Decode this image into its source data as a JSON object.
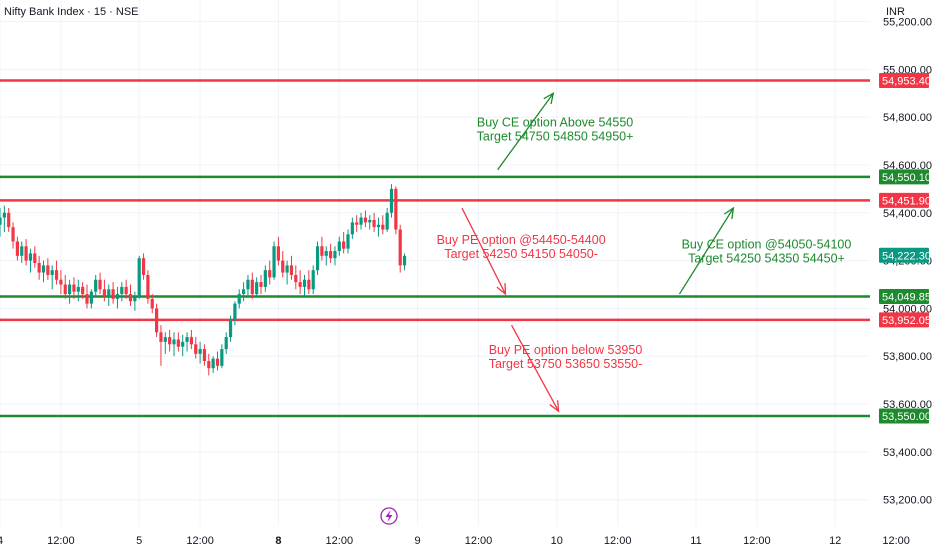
{
  "header": {
    "title": "Nifty Bank Index · 15 · NSE",
    "currency": "INR"
  },
  "colors": {
    "up": "#089981",
    "down": "#f23645",
    "resistance": "#f23645",
    "support": "#1e8a2e",
    "grid": "#f0f3fa",
    "text": "#131722"
  },
  "icons": {
    "event_marker": "lightning-bolt-icon"
  },
  "chart_data": {
    "type": "candlestick",
    "y_range": [
      53090,
      55290
    ],
    "y_ticks": [
      {
        "value": 55200,
        "label": "55,200.00"
      },
      {
        "value": 55000,
        "label": "55,000.00"
      },
      {
        "value": 54800,
        "label": "54,800.00"
      },
      {
        "value": 54600,
        "label": "54,600.00"
      },
      {
        "value": 54400,
        "label": "54,400.00"
      },
      {
        "value": 54200,
        "label": "54,200.00"
      },
      {
        "value": 54000,
        "label": "54,000.00"
      },
      {
        "value": 53800,
        "label": "53,800.00"
      },
      {
        "value": 53600,
        "label": "53,600.00"
      },
      {
        "value": 53400,
        "label": "53,400.00"
      },
      {
        "value": 53200,
        "label": "53,200.00"
      }
    ],
    "x_range": [
      0,
      100
    ],
    "x_ticks": [
      {
        "x": 0,
        "label": "4",
        "bold": false
      },
      {
        "x": 7,
        "label": "12:00",
        "bold": false
      },
      {
        "x": 16,
        "label": "5",
        "bold": false
      },
      {
        "x": 23,
        "label": "12:00",
        "bold": false
      },
      {
        "x": 32,
        "label": "8",
        "bold": true
      },
      {
        "x": 39,
        "label": "12:00",
        "bold": false
      },
      {
        "x": 48,
        "label": "9",
        "bold": false
      },
      {
        "x": 55,
        "label": "12:00",
        "bold": false
      },
      {
        "x": 64,
        "label": "10",
        "bold": false
      },
      {
        "x": 71,
        "label": "12:00",
        "bold": false
      },
      {
        "x": 80,
        "label": "11",
        "bold": false
      },
      {
        "x": 87,
        "label": "12:00",
        "bold": false
      },
      {
        "x": 96,
        "label": "12",
        "bold": false
      },
      {
        "x": 103,
        "label": "12:00",
        "bold": false
      }
    ],
    "levels": [
      {
        "value": 54953.4,
        "label": "54,953.40",
        "role": "resistance"
      },
      {
        "value": 54550.1,
        "label": "54,550.10",
        "role": "support"
      },
      {
        "value": 54451.9,
        "label": "54,451.90",
        "role": "resistance"
      },
      {
        "value": 54049.85,
        "label": "54,049.85",
        "role": "support"
      },
      {
        "value": 53952.05,
        "label": "53,952.05",
        "role": "resistance"
      },
      {
        "value": 53550.0,
        "label": "53,550.00",
        "role": "support"
      }
    ],
    "last_price": {
      "value": 54222.3,
      "label": "54,222.30"
    },
    "candles": [
      {
        "x": 0.0,
        "o": 54350,
        "h": 54420,
        "l": 54300,
        "c": 54380
      },
      {
        "x": 0.5,
        "o": 54380,
        "h": 54430,
        "l": 54320,
        "c": 54400
      },
      {
        "x": 1.0,
        "o": 54400,
        "h": 54420,
        "l": 54320,
        "c": 54340
      },
      {
        "x": 1.5,
        "o": 54340,
        "h": 54360,
        "l": 54250,
        "c": 54280
      },
      {
        "x": 2.0,
        "o": 54280,
        "h": 54300,
        "l": 54200,
        "c": 54220
      },
      {
        "x": 2.5,
        "o": 54220,
        "h": 54280,
        "l": 54190,
        "c": 54260
      },
      {
        "x": 3.0,
        "o": 54260,
        "h": 54290,
        "l": 54180,
        "c": 54200
      },
      {
        "x": 3.5,
        "o": 54200,
        "h": 54250,
        "l": 54150,
        "c": 54230
      },
      {
        "x": 4.0,
        "o": 54230,
        "h": 54260,
        "l": 54170,
        "c": 54190
      },
      {
        "x": 4.5,
        "o": 54190,
        "h": 54220,
        "l": 54120,
        "c": 54150
      },
      {
        "x": 5.0,
        "o": 54150,
        "h": 54200,
        "l": 54110,
        "c": 54180
      },
      {
        "x": 5.5,
        "o": 54180,
        "h": 54210,
        "l": 54120,
        "c": 54140
      },
      {
        "x": 6.0,
        "o": 54140,
        "h": 54180,
        "l": 54080,
        "c": 54160
      },
      {
        "x": 6.5,
        "o": 54160,
        "h": 54200,
        "l": 54100,
        "c": 54120
      },
      {
        "x": 7.0,
        "o": 54120,
        "h": 54160,
        "l": 54060,
        "c": 54100
      },
      {
        "x": 7.5,
        "o": 54100,
        "h": 54140,
        "l": 54040,
        "c": 54060
      },
      {
        "x": 8.0,
        "o": 54060,
        "h": 54120,
        "l": 54020,
        "c": 54100
      },
      {
        "x": 8.5,
        "o": 54100,
        "h": 54130,
        "l": 54040,
        "c": 54070
      },
      {
        "x": 9.0,
        "o": 54070,
        "h": 54120,
        "l": 54030,
        "c": 54090
      },
      {
        "x": 9.5,
        "o": 54090,
        "h": 54110,
        "l": 54040,
        "c": 54060
      },
      {
        "x": 10.0,
        "o": 54060,
        "h": 54100,
        "l": 54000,
        "c": 54020
      },
      {
        "x": 10.5,
        "o": 54020,
        "h": 54080,
        "l": 54000,
        "c": 54070
      },
      {
        "x": 11.0,
        "o": 54070,
        "h": 54140,
        "l": 54050,
        "c": 54120
      },
      {
        "x": 11.5,
        "o": 54120,
        "h": 54150,
        "l": 54060,
        "c": 54080
      },
      {
        "x": 12.0,
        "o": 54080,
        "h": 54120,
        "l": 54030,
        "c": 54050
      },
      {
        "x": 12.5,
        "o": 54050,
        "h": 54100,
        "l": 54010,
        "c": 54080
      },
      {
        "x": 13.0,
        "o": 54080,
        "h": 54110,
        "l": 54020,
        "c": 54040
      },
      {
        "x": 13.5,
        "o": 54040,
        "h": 54090,
        "l": 54000,
        "c": 54060
      },
      {
        "x": 14.0,
        "o": 54060,
        "h": 54110,
        "l": 54030,
        "c": 54090
      },
      {
        "x": 14.5,
        "o": 54090,
        "h": 54120,
        "l": 54040,
        "c": 54060
      },
      {
        "x": 15.0,
        "o": 54060,
        "h": 54100,
        "l": 54010,
        "c": 54030
      },
      {
        "x": 15.5,
        "o": 54030,
        "h": 54070,
        "l": 53990,
        "c": 54050
      },
      {
        "x": 16.0,
        "o": 54050,
        "h": 54220,
        "l": 54040,
        "c": 54210
      },
      {
        "x": 16.5,
        "o": 54210,
        "h": 54230,
        "l": 54120,
        "c": 54140
      },
      {
        "x": 17.0,
        "o": 54140,
        "h": 54160,
        "l": 54020,
        "c": 54040
      },
      {
        "x": 17.5,
        "o": 54040,
        "h": 54060,
        "l": 53980,
        "c": 54000
      },
      {
        "x": 18.0,
        "o": 54000,
        "h": 54020,
        "l": 53880,
        "c": 53900
      },
      {
        "x": 18.5,
        "o": 53900,
        "h": 53930,
        "l": 53760,
        "c": 53860
      },
      {
        "x": 19.0,
        "o": 53860,
        "h": 53900,
        "l": 53810,
        "c": 53880
      },
      {
        "x": 19.5,
        "o": 53880,
        "h": 53910,
        "l": 53820,
        "c": 53850
      },
      {
        "x": 20.0,
        "o": 53850,
        "h": 53900,
        "l": 53800,
        "c": 53870
      },
      {
        "x": 20.5,
        "o": 53870,
        "h": 53900,
        "l": 53820,
        "c": 53840
      },
      {
        "x": 21.0,
        "o": 53840,
        "h": 53890,
        "l": 53800,
        "c": 53860
      },
      {
        "x": 21.5,
        "o": 53860,
        "h": 53900,
        "l": 53820,
        "c": 53880
      },
      {
        "x": 22.0,
        "o": 53880,
        "h": 53910,
        "l": 53830,
        "c": 53850
      },
      {
        "x": 22.5,
        "o": 53850,
        "h": 53880,
        "l": 53790,
        "c": 53810
      },
      {
        "x": 23.0,
        "o": 53810,
        "h": 53860,
        "l": 53770,
        "c": 53830
      },
      {
        "x": 23.5,
        "o": 53830,
        "h": 53850,
        "l": 53760,
        "c": 53780
      },
      {
        "x": 24.0,
        "o": 53780,
        "h": 53810,
        "l": 53720,
        "c": 53750
      },
      {
        "x": 24.5,
        "o": 53750,
        "h": 53800,
        "l": 53730,
        "c": 53790
      },
      {
        "x": 25.0,
        "o": 53790,
        "h": 53820,
        "l": 53740,
        "c": 53760
      },
      {
        "x": 25.5,
        "o": 53760,
        "h": 53850,
        "l": 53750,
        "c": 53830
      },
      {
        "x": 26.0,
        "o": 53830,
        "h": 53900,
        "l": 53810,
        "c": 53880
      },
      {
        "x": 26.5,
        "o": 53880,
        "h": 53970,
        "l": 53860,
        "c": 53950
      },
      {
        "x": 27.0,
        "o": 53950,
        "h": 54030,
        "l": 53930,
        "c": 54020
      },
      {
        "x": 27.5,
        "o": 54020,
        "h": 54080,
        "l": 54000,
        "c": 54060
      },
      {
        "x": 28.0,
        "o": 54060,
        "h": 54110,
        "l": 54030,
        "c": 54080
      },
      {
        "x": 28.5,
        "o": 54080,
        "h": 54140,
        "l": 54050,
        "c": 54120
      },
      {
        "x": 29.0,
        "o": 54120,
        "h": 54150,
        "l": 54040,
        "c": 54060
      },
      {
        "x": 29.5,
        "o": 54060,
        "h": 54130,
        "l": 54050,
        "c": 54110
      },
      {
        "x": 30.0,
        "o": 54110,
        "h": 54140,
        "l": 54060,
        "c": 54090
      },
      {
        "x": 30.5,
        "o": 54090,
        "h": 54180,
        "l": 54070,
        "c": 54160
      },
      {
        "x": 31.0,
        "o": 54160,
        "h": 54200,
        "l": 54100,
        "c": 54130
      },
      {
        "x": 31.5,
        "o": 54130,
        "h": 54280,
        "l": 54120,
        "c": 54260
      },
      {
        "x": 32.0,
        "o": 54260,
        "h": 54300,
        "l": 54180,
        "c": 54200
      },
      {
        "x": 32.5,
        "o": 54200,
        "h": 54240,
        "l": 54130,
        "c": 54150
      },
      {
        "x": 33.0,
        "o": 54150,
        "h": 54200,
        "l": 54100,
        "c": 54180
      },
      {
        "x": 33.5,
        "o": 54180,
        "h": 54220,
        "l": 54120,
        "c": 54140
      },
      {
        "x": 34.0,
        "o": 54140,
        "h": 54180,
        "l": 54080,
        "c": 54110
      },
      {
        "x": 34.5,
        "o": 54110,
        "h": 54160,
        "l": 54060,
        "c": 54090
      },
      {
        "x": 35.0,
        "o": 54090,
        "h": 54140,
        "l": 54050,
        "c": 54120
      },
      {
        "x": 35.5,
        "o": 54120,
        "h": 54160,
        "l": 54060,
        "c": 54080
      },
      {
        "x": 36.0,
        "o": 54080,
        "h": 54180,
        "l": 54060,
        "c": 54160
      },
      {
        "x": 36.5,
        "o": 54160,
        "h": 54280,
        "l": 54140,
        "c": 54260
      },
      {
        "x": 37.0,
        "o": 54260,
        "h": 54300,
        "l": 54200,
        "c": 54220
      },
      {
        "x": 37.5,
        "o": 54220,
        "h": 54260,
        "l": 54180,
        "c": 54240
      },
      {
        "x": 38.0,
        "o": 54240,
        "h": 54270,
        "l": 54190,
        "c": 54210
      },
      {
        "x": 38.5,
        "o": 54210,
        "h": 54260,
        "l": 54180,
        "c": 54240
      },
      {
        "x": 39.0,
        "o": 54240,
        "h": 54300,
        "l": 54220,
        "c": 54280
      },
      {
        "x": 39.5,
        "o": 54280,
        "h": 54320,
        "l": 54230,
        "c": 54250
      },
      {
        "x": 40.0,
        "o": 54250,
        "h": 54330,
        "l": 54230,
        "c": 54310
      },
      {
        "x": 40.5,
        "o": 54310,
        "h": 54380,
        "l": 54290,
        "c": 54360
      },
      {
        "x": 41.0,
        "o": 54360,
        "h": 54390,
        "l": 54320,
        "c": 54350
      },
      {
        "x": 41.5,
        "o": 54350,
        "h": 54400,
        "l": 54330,
        "c": 54380
      },
      {
        "x": 42.0,
        "o": 54380,
        "h": 54410,
        "l": 54340,
        "c": 54360
      },
      {
        "x": 42.5,
        "o": 54360,
        "h": 54390,
        "l": 54330,
        "c": 54370
      },
      {
        "x": 43.0,
        "o": 54370,
        "h": 54400,
        "l": 54320,
        "c": 54340
      },
      {
        "x": 43.5,
        "o": 54340,
        "h": 54380,
        "l": 54300,
        "c": 54350
      },
      {
        "x": 44.0,
        "o": 54350,
        "h": 54390,
        "l": 54310,
        "c": 54330
      },
      {
        "x": 44.5,
        "o": 54330,
        "h": 54420,
        "l": 54320,
        "c": 54400
      },
      {
        "x": 45.0,
        "o": 54400,
        "h": 54520,
        "l": 54380,
        "c": 54500
      },
      {
        "x": 45.5,
        "o": 54500,
        "h": 54510,
        "l": 54310,
        "c": 54330
      },
      {
        "x": 46.0,
        "o": 54330,
        "h": 54350,
        "l": 54150,
        "c": 54180
      },
      {
        "x": 46.5,
        "o": 54180,
        "h": 54230,
        "l": 54160,
        "c": 54220
      }
    ],
    "annotations": [
      {
        "lines": [
          "Buy CE option Above 54550",
          "Target 54750 54850 54950+"
        ],
        "x": 63.8,
        "y": 54760,
        "color": "support"
      },
      {
        "lines": [
          "Buy PE option @54450-54400",
          "Target 54250 54150 54050-"
        ],
        "x": 59.9,
        "y": 54270,
        "color": "resistance"
      },
      {
        "lines": [
          "Buy CE option @54050-54100",
          "Target 54250 54350 54450+"
        ],
        "x": 88.1,
        "y": 54250,
        "color": "support"
      },
      {
        "lines": [
          "Buy PE option below 53950",
          "Target 53750 53650 53550-"
        ],
        "x": 65.0,
        "y": 53810,
        "color": "resistance"
      }
    ],
    "arrows": [
      {
        "x1": 57.2,
        "y1": 54580,
        "x2": 63.6,
        "y2": 54900,
        "color": "support"
      },
      {
        "x1": 53.1,
        "y1": 54420,
        "x2": 58.1,
        "y2": 54060,
        "color": "resistance"
      },
      {
        "x1": 78.1,
        "y1": 54060,
        "x2": 84.3,
        "y2": 54420,
        "color": "support"
      },
      {
        "x1": 58.8,
        "y1": 53930,
        "x2": 64.2,
        "y2": 53570,
        "color": "resistance"
      }
    ]
  }
}
